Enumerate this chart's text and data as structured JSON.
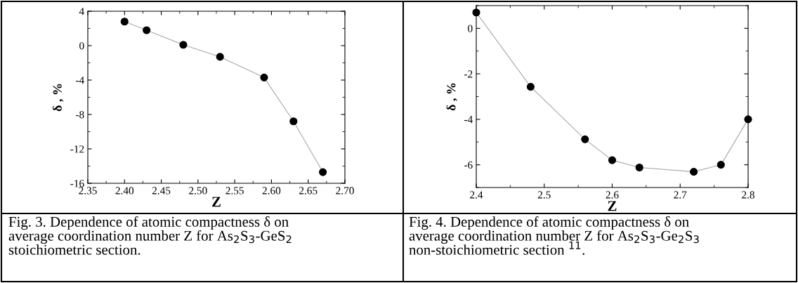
{
  "chart_data": [
    {
      "type": "line",
      "xlabel": "Z",
      "ylabel": "δ , %",
      "marker": "circle",
      "line_style": "solid",
      "grid": false,
      "x": [
        2.4,
        2.43,
        2.48,
        2.53,
        2.59,
        2.63,
        2.67
      ],
      "series": [
        {
          "color": "#000000",
          "values": [
            2.8,
            1.8,
            0.1,
            -1.3,
            -3.7,
            -8.8,
            -14.7
          ]
        }
      ],
      "xlim": [
        2.35,
        2.7
      ],
      "xticks": [
        {
          "value": 2.35,
          "label": "2.35"
        },
        {
          "value": 2.4,
          "label": "2.40"
        },
        {
          "value": 2.45,
          "label": "2.45"
        },
        {
          "value": 2.5,
          "label": "2.50"
        },
        {
          "value": 2.55,
          "label": "2.55"
        },
        {
          "value": 2.6,
          "label": "2.60"
        },
        {
          "value": 2.65,
          "label": "2.65"
        },
        {
          "value": 2.7,
          "label": "2.70"
        }
      ],
      "ylim": [
        -16,
        4
      ],
      "yticks": [
        -16,
        -12,
        -8,
        -4,
        0,
        4
      ],
      "annotations": [
        "Fig. 3. Dependence of atomic compactness δ on\naverage coordination number Z for As$_{2}$S$_{3}$-GeS$_{2}$\nstoichiometric section."
      ]
    },
    {
      "type": "line",
      "xlabel": "Z",
      "ylabel": "δ , %",
      "marker": "circle",
      "line_style": "solid",
      "grid": false,
      "x": [
        2.4,
        2.48,
        2.56,
        2.6,
        2.64,
        2.72,
        2.76,
        2.8
      ],
      "series": [
        {
          "color": "#000000",
          "values": [
            0.7,
            -2.57,
            -4.88,
            -5.8,
            -6.12,
            -6.31,
            -6.0,
            -4.0
          ]
        }
      ],
      "xlim": [
        2.4,
        2.8
      ],
      "xticks": [
        2.4,
        2.5,
        2.6,
        2.7,
        2.8
      ],
      "ylim": [
        -7,
        1
      ],
      "yticks": [
        -6,
        -4,
        -2,
        0
      ],
      "annotations": [
        "Fig. 4. Dependence of atomic compactness δ on\naverage coordination number Z for As$_{2}$S$_{3}$-Ge$_{2}$S$_{3}$\nnon-stoichiometric section $^{11}$."
      ]
    }
  ]
}
